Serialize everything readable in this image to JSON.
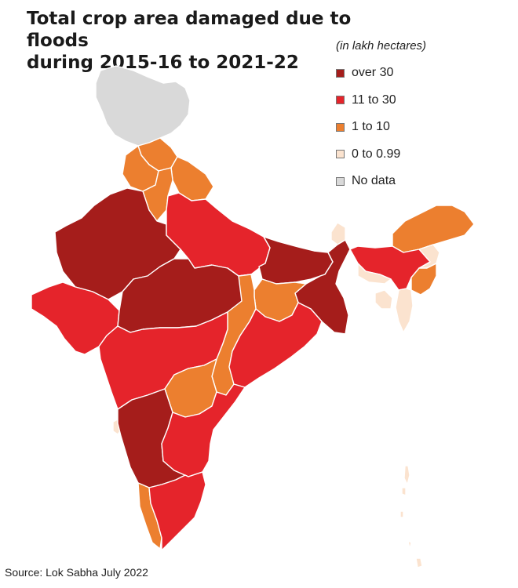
{
  "title": {
    "line1": "Total crop area damaged due to floods",
    "line2": "during 2015-16 to 2021-22"
  },
  "unit_note": "(in lakh hectares)",
  "legend": [
    {
      "label": "over 30",
      "color": "#a51d1b"
    },
    {
      "label": "11 to 30",
      "color": "#e5242b"
    },
    {
      "label": "1 to 10",
      "color": "#ec7f2f"
    },
    {
      "label": "0 to 0.99",
      "color": "#fbe3cf"
    },
    {
      "label": "No data",
      "color": "#d9d9d9"
    }
  ],
  "source": "Source: Lok Sabha July 2022"
}
